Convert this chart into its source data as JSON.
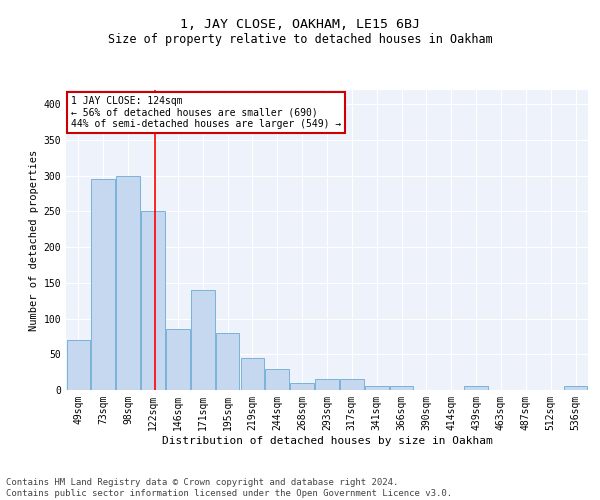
{
  "title": "1, JAY CLOSE, OAKHAM, LE15 6BJ",
  "subtitle": "Size of property relative to detached houses in Oakham",
  "xlabel": "Distribution of detached houses by size in Oakham",
  "ylabel": "Number of detached properties",
  "categories": [
    "49sqm",
    "73sqm",
    "98sqm",
    "122sqm",
    "146sqm",
    "171sqm",
    "195sqm",
    "219sqm",
    "244sqm",
    "268sqm",
    "293sqm",
    "317sqm",
    "341sqm",
    "366sqm",
    "390sqm",
    "414sqm",
    "439sqm",
    "463sqm",
    "487sqm",
    "512sqm",
    "536sqm"
  ],
  "values": [
    70,
    295,
    300,
    250,
    85,
    140,
    80,
    45,
    30,
    10,
    15,
    15,
    5,
    5,
    0,
    0,
    5,
    0,
    0,
    0,
    5
  ],
  "bar_color": "#c5d8f0",
  "bar_edge_color": "#6aaad4",
  "red_line_x": 3.08,
  "annotation_text": "1 JAY CLOSE: 124sqm\n← 56% of detached houses are smaller (690)\n44% of semi-detached houses are larger (549) →",
  "annotation_box_color": "#ffffff",
  "annotation_box_edge_color": "#cc0000",
  "footer_text": "Contains HM Land Registry data © Crown copyright and database right 2024.\nContains public sector information licensed under the Open Government Licence v3.0.",
  "background_color": "#eef2fa",
  "ylim": [
    0,
    420
  ],
  "yticks": [
    0,
    50,
    100,
    150,
    200,
    250,
    300,
    350,
    400
  ],
  "grid_color": "#ffffff",
  "title_fontsize": 9.5,
  "subtitle_fontsize": 8.5,
  "xlabel_fontsize": 8,
  "ylabel_fontsize": 7.5,
  "tick_fontsize": 7,
  "annotation_fontsize": 7,
  "footer_fontsize": 6.5
}
